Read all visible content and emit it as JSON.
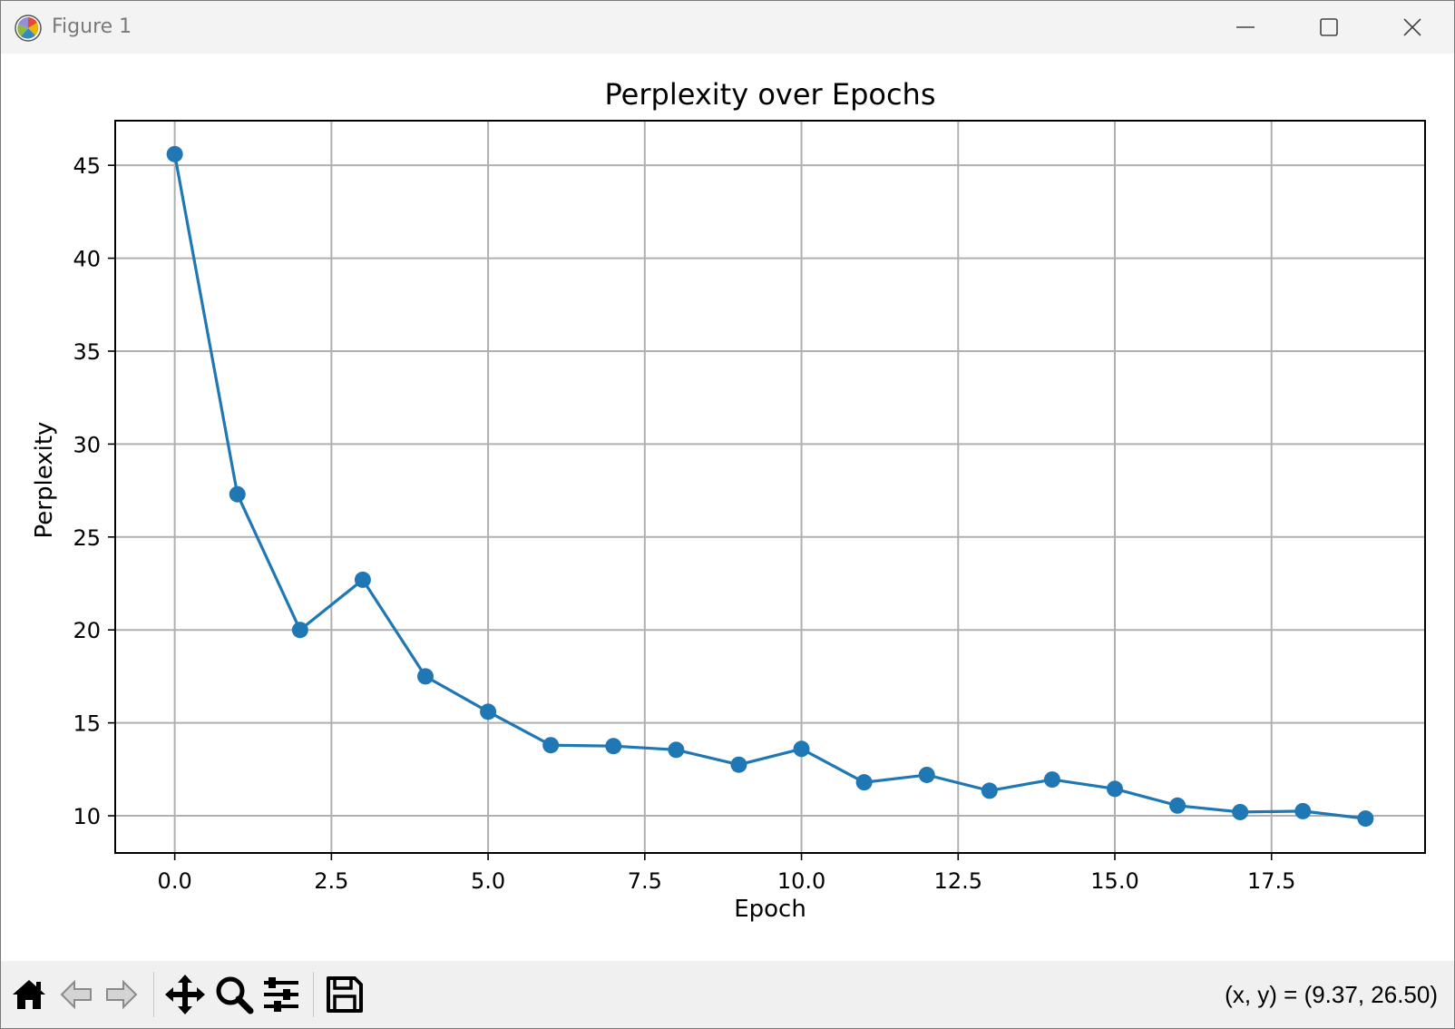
{
  "window": {
    "title": "Figure 1",
    "icons": {
      "app": "matplotlib-logo-icon",
      "minimize": "minimize-icon",
      "maximize": "maximize-icon",
      "close": "close-icon"
    }
  },
  "toolbar": {
    "tools": [
      {
        "name": "home-icon"
      },
      {
        "name": "back-arrow-icon"
      },
      {
        "name": "forward-arrow-icon"
      },
      {
        "name": "pan-move-icon"
      },
      {
        "name": "zoom-magnifier-icon"
      },
      {
        "name": "configure-subplots-icon"
      },
      {
        "name": "save-floppy-icon"
      }
    ],
    "coords": "(x, y) = (9.37, 26.50)"
  },
  "chart_data": {
    "type": "line",
    "title": "Perplexity over Epochs",
    "xlabel": "Epoch",
    "ylabel": "Perplexity",
    "x": [
      0,
      1,
      2,
      3,
      4,
      5,
      6,
      7,
      8,
      9,
      10,
      11,
      12,
      13,
      14,
      15,
      16,
      17,
      18,
      19
    ],
    "series": [
      {
        "values": [
          45.6,
          27.3,
          20.0,
          22.7,
          17.5,
          15.6,
          13.8,
          13.75,
          13.55,
          12.75,
          13.6,
          11.8,
          12.2,
          11.35,
          11.95,
          11.45,
          10.55,
          10.2,
          10.25,
          9.85
        ],
        "color": "#1f77b4",
        "marker": "circle"
      }
    ],
    "xlim": [
      -0.95,
      19.95
    ],
    "ylim": [
      8.0,
      47.4
    ],
    "xticks": [
      0.0,
      2.5,
      5.0,
      7.5,
      10.0,
      12.5,
      15.0,
      17.5
    ],
    "xtick_labels": [
      "0.0",
      "2.5",
      "5.0",
      "7.5",
      "10.0",
      "12.5",
      "15.0",
      "17.5"
    ],
    "yticks": [
      10,
      15,
      20,
      25,
      30,
      35,
      40,
      45
    ],
    "ytick_labels": [
      "10",
      "15",
      "20",
      "25",
      "30",
      "35",
      "40",
      "45"
    ],
    "grid": true,
    "grid_color": "#b0b0b0"
  }
}
